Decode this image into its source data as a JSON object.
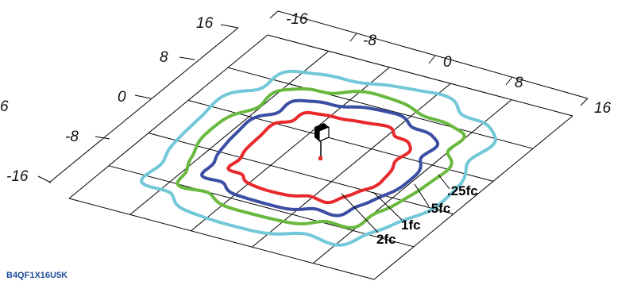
{
  "left_axis": {
    "ticks": [
      "16",
      "8",
      "0",
      "-8",
      "-16"
    ]
  },
  "right_axis": {
    "ticks": [
      "-16",
      "-8",
      "0",
      "8",
      "16"
    ]
  },
  "edge_fragment": "6",
  "contours": [
    {
      "level": "2fc",
      "color": "#e8292c"
    },
    {
      "level": "1fc",
      "color": "#3b4ea3"
    },
    {
      "level": ".5fc",
      "color": "#6ab93f"
    },
    {
      "level": ".25fc",
      "color": "#72c8d8"
    }
  ],
  "fixture_icon": "light-fixture-icon",
  "catalog_code": "B4QF1X16U5K"
}
